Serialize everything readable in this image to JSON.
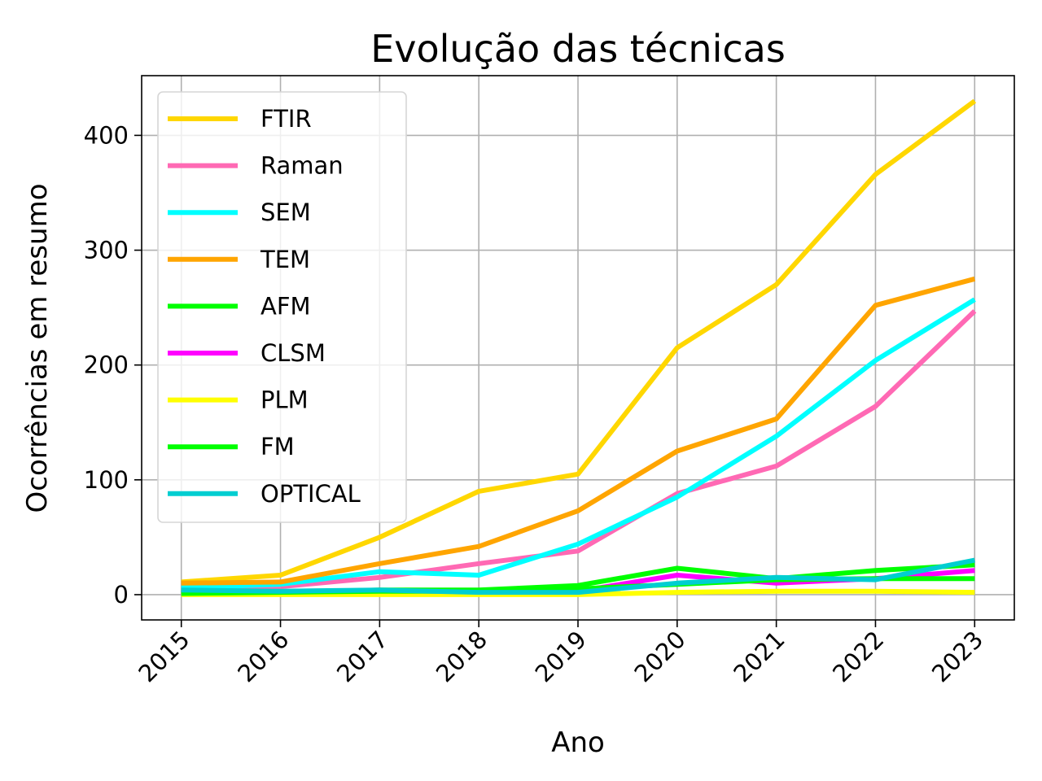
{
  "chart_data": {
    "type": "line",
    "title": "Evolução das técnicas",
    "xlabel": "Ano",
    "ylabel": "Ocorrências em resumo",
    "x": [
      "2015",
      "2016",
      "2017",
      "2018",
      "2019",
      "2020",
      "2021",
      "2022",
      "2023"
    ],
    "xlim": [
      2014.6,
      2023.4
    ],
    "ylim": [
      -22,
      452
    ],
    "yticks": [
      "0",
      "100",
      "200",
      "300",
      "400"
    ],
    "grid": true,
    "legend_position": "upper-left",
    "series": [
      {
        "name": "FTIR",
        "color": "#FFD700",
        "values": [
          11,
          17,
          50,
          90,
          105,
          215,
          270,
          366,
          430
        ]
      },
      {
        "name": "Raman",
        "color": "#FF69B4",
        "values": [
          8,
          7,
          15,
          27,
          38,
          88,
          112,
          164,
          247
        ]
      },
      {
        "name": "SEM",
        "color": "#00FFFF",
        "values": [
          6,
          9,
          20,
          17,
          44,
          85,
          138,
          204,
          257
        ]
      },
      {
        "name": "TEM",
        "color": "#FFA500",
        "values": [
          10,
          11,
          27,
          42,
          73,
          125,
          153,
          252,
          275
        ]
      },
      {
        "name": "AFM",
        "color": "#00FF00",
        "values": [
          2,
          2,
          4,
          4,
          8,
          23,
          14,
          21,
          26
        ]
      },
      {
        "name": "CLSM",
        "color": "#FF00FF",
        "values": [
          1,
          1,
          2,
          2,
          3,
          17,
          10,
          14,
          21
        ]
      },
      {
        "name": "PLM",
        "color": "#FFFF00",
        "values": [
          0,
          0,
          0,
          0,
          0,
          2,
          3,
          3,
          2
        ]
      },
      {
        "name": "FM",
        "color": "#00FF00",
        "values": [
          1,
          2,
          3,
          3,
          5,
          9,
          13,
          14,
          14
        ]
      },
      {
        "name": "OPTICAL",
        "color": "#00CED1",
        "values": [
          4,
          3,
          4,
          2,
          2,
          10,
          15,
          13,
          30
        ]
      }
    ]
  }
}
